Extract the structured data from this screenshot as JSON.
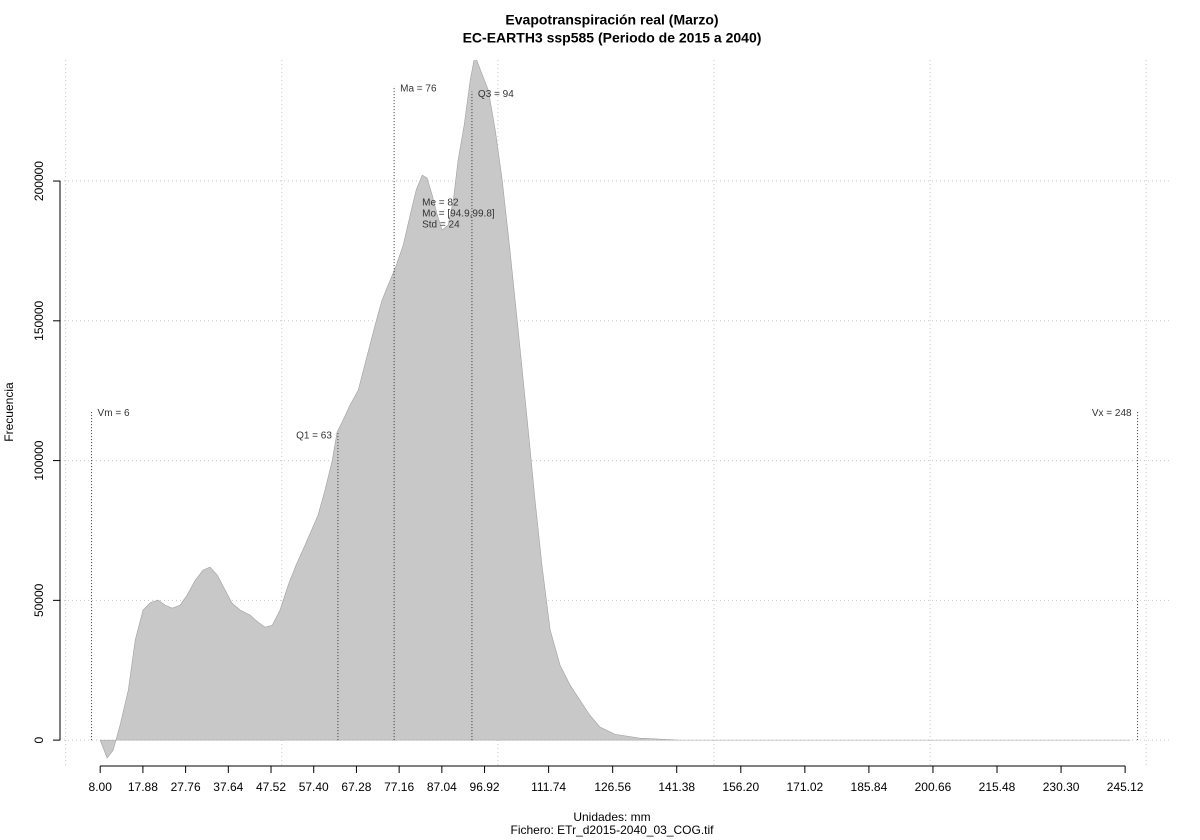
{
  "chart_data": {
    "type": "area",
    "title": "Evapotranspiración real (Marzo)",
    "subtitle": "EC-EARTH3 ssp585 (Periodo de 2015 a 2040)",
    "x_label": "Unidades: mm",
    "caption": "Fichero: ETr_d2015-2040_03_COG.tif",
    "y_label": "Frecuencia",
    "color": "#c8c8c8",
    "x": [
      8.0,
      9.6,
      11.0,
      12.6,
      14.5,
      16.1,
      17.9,
      19.6,
      21.4,
      23.0,
      24.7,
      26.5,
      28.1,
      30.0,
      31.8,
      33.4,
      35.1,
      36.9,
      38.5,
      40.4,
      42.7,
      44.5,
      46.2,
      47.8,
      49.6,
      51.5,
      53.3,
      55.4,
      58.4,
      60.0,
      61.7,
      62.8,
      64.2,
      65.8,
      67.7,
      69.5,
      71.6,
      73.2,
      75.1,
      76.5,
      78.1,
      79.7,
      81.1,
      82.5,
      83.6,
      84.8,
      86.0,
      87.1,
      88.5,
      89.7,
      90.8,
      92.2,
      93.6,
      94.7,
      95.9,
      97.8,
      99.4,
      101.0,
      102.8,
      104.7,
      106.8,
      108.6,
      110.2,
      112.1,
      114.4,
      116.7,
      119.0,
      121.3,
      123.6,
      127.1,
      132.9,
      142.2,
      151.4,
      246.3
    ],
    "values": [
      0,
      -6400,
      -3600,
      5400,
      17900,
      35800,
      46500,
      49200,
      50100,
      48300,
      47200,
      48300,
      51900,
      57200,
      60800,
      61900,
      59000,
      53700,
      49000,
      46500,
      44700,
      42200,
      40400,
      41100,
      46500,
      55500,
      62600,
      69800,
      80500,
      89400,
      100200,
      110200,
      114500,
      119900,
      125200,
      136000,
      148500,
      157400,
      164600,
      169900,
      177100,
      187800,
      196800,
      202100,
      201100,
      195000,
      187800,
      182500,
      184300,
      193200,
      207500,
      220000,
      236100,
      245000,
      240000,
      232500,
      218200,
      200400,
      175300,
      146700,
      114500,
      85900,
      62600,
      39400,
      26800,
      19700,
      14300,
      8900,
      4700,
      2100,
      700,
      0,
      0,
      0
    ],
    "xlim": [
      -1.3,
      255.5
    ],
    "ylim": [
      -8900,
      243300
    ],
    "xticks": [
      {
        "value": 8,
        "label": "8.00"
      },
      17.88,
      27.76,
      37.64,
      47.52,
      {
        "value": 57.4,
        "label": "57.40"
      },
      67.28,
      77.16,
      87.04,
      96.92,
      111.74,
      126.56,
      141.38,
      {
        "value": 156.2,
        "label": "156.20"
      },
      171.02,
      185.84,
      200.66,
      215.48,
      {
        "value": 230.3,
        "label": "230.30"
      },
      245.12
    ],
    "yticks": [
      0,
      50000,
      100000,
      150000,
      200000
    ],
    "x_gridlines": [
      0,
      50,
      100,
      150,
      200,
      250
    ],
    "grid": true,
    "markers": [
      {
        "label": "Vm = 6",
        "value": 6,
        "height": 118000
      },
      {
        "label": "Q1 = 63",
        "value": 63,
        "height": 110000
      },
      {
        "label": "Ma = 76",
        "value": 76,
        "height": 234000
      },
      {
        "label": "Q3 = 94",
        "value": 94,
        "height": 232000
      },
      {
        "label": "Vx = 248",
        "value": 248,
        "height": 118000
      }
    ],
    "stats": [
      "Me = 82",
      "Mo = [94.9,99.8]",
      "Std = 24"
    ]
  }
}
